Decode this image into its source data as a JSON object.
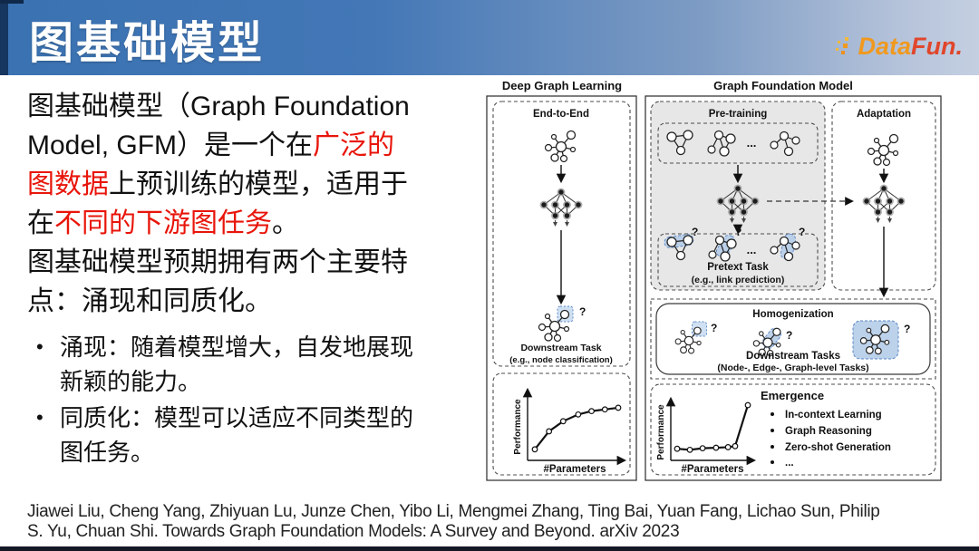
{
  "header": {
    "title": "图基础模型",
    "logo": {
      "part1": "Data",
      "part2": "Fun."
    }
  },
  "content": {
    "para1": {
      "seg1": "图基础模型（Graph Foundation\nModel, GFM）是一个在",
      "seg2_red": "广泛的\n图数据",
      "seg3": "上预训练的模型，适用于\n在",
      "seg4_red": "不同的下游图任务",
      "seg5": "。"
    },
    "para2": "图基础模型预期拥有两个主要特\n点：涌现和同质化。",
    "bullets": [
      {
        "marker": "•",
        "text": "涌现：随着模型增大，自发地展现\n新颖的能力。"
      },
      {
        "marker": "•",
        "text": "同质化：模型可以适应不同类型的\n图任务。"
      }
    ]
  },
  "figure": {
    "left_header": "Deep Graph Learning",
    "right_header": "Graph Foundation Model",
    "end_to_end": "End-to-End",
    "downstream1": "Downstream Task",
    "downstream2": "(e.g., node classification)",
    "pretraining": "Pre-training",
    "adaptation": "Adaptation",
    "pretext1": "Pretext Task",
    "pretext2": "(e.g., link prediction)",
    "homogenization": "Homogenization",
    "downstream_tasks1": "Downstream Tasks",
    "downstream_tasks2": "(Node-, Edge-, Graph-level Tasks)",
    "emergence": "Emergence",
    "emergence_items": [
      "In-context Learning",
      "Graph Reasoning",
      "Zero-shot Generation",
      "..."
    ],
    "ellipsis": "...",
    "q": "?",
    "xlabel": "#Parameters",
    "ylabel": "Performance",
    "plots": {
      "scaling": {
        "type": "line",
        "xlabel": "#Parameters",
        "ylabel": "Performance",
        "points": [
          [
            0,
            0.1
          ],
          [
            0.17,
            0.42
          ],
          [
            0.34,
            0.6
          ],
          [
            0.52,
            0.72
          ],
          [
            0.68,
            0.78
          ],
          [
            0.84,
            0.81
          ],
          [
            1,
            0.84
          ]
        ]
      },
      "emergence": {
        "type": "line",
        "xlabel": "#Parameters",
        "ylabel": "Performance",
        "points": [
          [
            0,
            0.1
          ],
          [
            0.18,
            0.08
          ],
          [
            0.36,
            0.11
          ],
          [
            0.55,
            0.12
          ],
          [
            0.72,
            0.13
          ],
          [
            0.82,
            0.15
          ],
          [
            1,
            0.93
          ]
        ]
      }
    }
  },
  "citation": "Jiawei Liu, Cheng Yang, Zhiyuan Lu, Junze Chen, Yibo Li, Mengmei Zhang, Ting Bai, Yuan Fang, Lichao Sun, Philip\nS. Yu, Chuan Shi. Towards Graph Foundation Models: A Survey and Beyond. arXiv 2023",
  "colors": {
    "accent_red": "#e8150a",
    "header_blue": "#3a72b2",
    "header_blue_light": "#c4cfe1",
    "header_strip_navy": "#16365f",
    "highlight_blue": "#b9cfe9",
    "logo_orange": "#f0991e",
    "logo_red": "#e0462b"
  }
}
